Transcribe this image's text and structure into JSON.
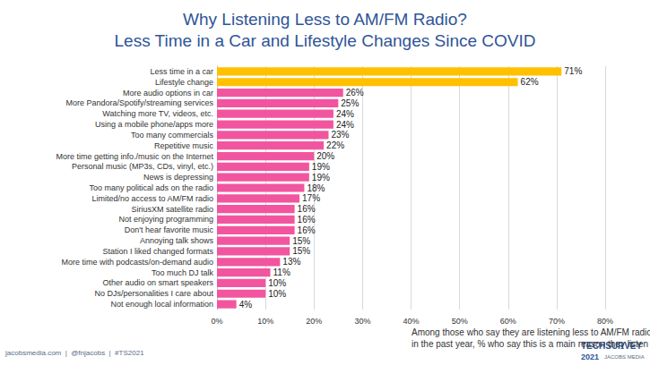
{
  "chart_data": {
    "type": "bar",
    "title": "Why Listening Less to AM/FM Radio?\nLess Time in a Car and Lifestyle Changes Since COVID",
    "x_label": "Among those who say they are listening less to AM/FM radio\nin the past year, % who say this is a main reason they listen less",
    "orientation": "horizontal",
    "categories": [
      "Less time in a car",
      "Lifestyle change",
      "More audio options in car",
      "More Pandora/Spotify/streaming services",
      "Watching more TV, videos, etc.",
      "Using a mobile phone/apps more",
      "Too many commercials",
      "Repetitive music",
      "More time getting info./music on the Internet",
      "Personal music (MP3s, CDs, vinyl, etc.)",
      "News is depressing",
      "Too many political ads on the radio",
      "Limited/no access to AM/FM radio",
      "SiriusXM satellite radio",
      "Not enjoying programming",
      "Don't hear favorite music",
      "Annoying talk shows",
      "Station I liked changed formats",
      "More time with podcasts/on-demand audio",
      "Too much DJ talk",
      "Other audio on smart speakers",
      "No DJs/personalities I care about",
      "Not enough local information"
    ],
    "values": [
      71,
      62,
      26,
      25,
      24,
      24,
      23,
      22,
      20,
      19,
      19,
      18,
      17,
      16,
      16,
      16,
      15,
      15,
      13,
      11,
      10,
      10,
      4
    ],
    "value_labels": [
      "71%",
      "62%",
      "26%",
      "25%",
      "24%",
      "24%",
      "23%",
      "22%",
      "20%",
      "19%",
      "19%",
      "18%",
      "17%",
      "16%",
      "16%",
      "16%",
      "15%",
      "15%",
      "13%",
      "11%",
      "10%",
      "10%",
      "4%"
    ],
    "colors": [
      "#ffc000",
      "#ffc000",
      "#f2559f",
      "#f2559f",
      "#f2559f",
      "#f2559f",
      "#f2559f",
      "#f2559f",
      "#f2559f",
      "#f2559f",
      "#f2559f",
      "#f2559f",
      "#f2559f",
      "#f2559f",
      "#f2559f",
      "#f2559f",
      "#f2559f",
      "#f2559f",
      "#f2559f",
      "#f2559f",
      "#f2559f",
      "#f2559f",
      "#f2559f"
    ],
    "data_labels": true,
    "xlim": [
      0,
      80
    ],
    "xticks": [
      {
        "value": 0,
        "label": "0%"
      },
      {
        "value": 10,
        "label": "10%"
      },
      {
        "value": 20,
        "label": "20%"
      },
      {
        "value": 30,
        "label": "30%"
      },
      {
        "value": 40,
        "label": "40%"
      },
      {
        "value": 50,
        "label": "50%"
      },
      {
        "value": 60,
        "label": "60%"
      },
      {
        "value": 70,
        "label": "70%"
      },
      {
        "value": 80,
        "label": "80%"
      }
    ],
    "grid": true,
    "annotations": [
      "jacobsmedia.com  |  @fnjacobs  |  #TS2021",
      "TECHSURVEY",
      "2021",
      "JACOBS MEDIA"
    ]
  }
}
